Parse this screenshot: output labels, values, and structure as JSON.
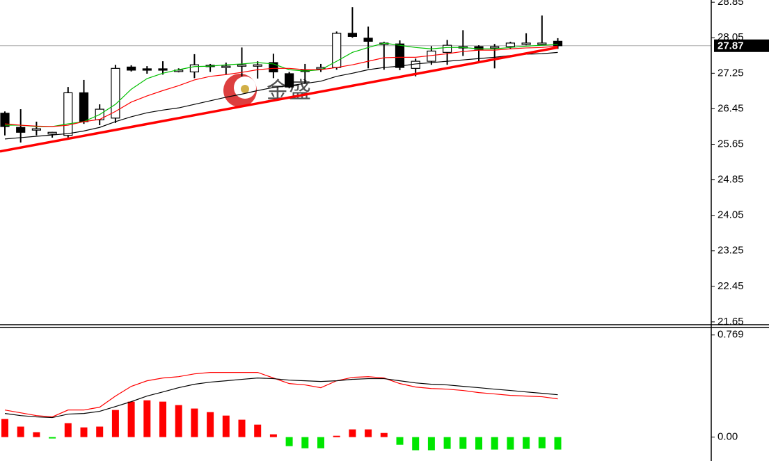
{
  "watermark": "金盛",
  "chart_data": [
    {
      "type": "candlestick",
      "open": [
        26.35,
        26.03,
        26.0,
        25.88,
        25.85,
        26.81,
        26.2,
        26.24,
        27.39,
        27.35,
        27.35,
        27.32,
        27.28,
        27.43,
        27.41,
        27.44,
        27.44,
        27.49,
        27.24,
        27.32,
        27.38,
        27.38,
        28.15,
        28.04,
        27.93,
        27.91,
        27.36,
        27.52,
        27.72,
        27.85,
        27.85,
        27.85,
        27.85,
        27.93,
        27.93,
        27.97
      ],
      "high": [
        26.39,
        26.44,
        26.16,
        25.93,
        26.94,
        27.1,
        26.55,
        27.44,
        27.43,
        27.41,
        27.52,
        27.36,
        27.68,
        27.46,
        27.49,
        27.83,
        27.52,
        27.69,
        27.28,
        27.46,
        27.46,
        28.19,
        28.74,
        28.3,
        27.96,
        27.99,
        27.58,
        27.86,
        28.0,
        28.22,
        27.88,
        27.91,
        27.96,
        28.15,
        28.55,
        28.04
      ],
      "low": [
        25.85,
        25.69,
        25.85,
        25.8,
        25.8,
        26.11,
        26.08,
        26.13,
        27.29,
        27.24,
        27.22,
        27.27,
        27.14,
        27.28,
        27.22,
        27.18,
        27.13,
        27.14,
        26.91,
        27.02,
        27.28,
        27.33,
        28.05,
        27.36,
        27.33,
        27.32,
        27.18,
        27.44,
        27.44,
        27.64,
        27.49,
        27.36,
        27.8,
        27.88,
        27.88,
        27.8
      ],
      "close": [
        26.05,
        25.92,
        26.0,
        25.92,
        26.81,
        26.16,
        26.44,
        27.36,
        27.32,
        27.33,
        27.34,
        27.32,
        27.44,
        27.43,
        27.41,
        27.44,
        27.44,
        27.28,
        26.94,
        27.31,
        27.38,
        28.15,
        28.08,
        27.97,
        27.93,
        27.38,
        27.52,
        27.75,
        27.88,
        27.85,
        27.79,
        27.85,
        27.93,
        27.93,
        27.93,
        27.87
      ],
      "series": [
        {
          "color": "#00c000",
          "values": [
            26.08,
            26.08,
            26.05,
            26.05,
            26.11,
            26.16,
            26.32,
            26.55,
            26.89,
            27.13,
            27.25,
            27.33,
            27.4,
            27.41,
            27.44,
            27.46,
            27.49,
            27.46,
            27.33,
            27.3,
            27.33,
            27.52,
            27.72,
            27.83,
            27.93,
            27.88,
            27.83,
            27.8,
            27.83,
            27.83,
            27.8,
            27.8,
            27.83,
            27.86,
            27.88,
            27.9
          ]
        },
        {
          "color": "#ff0000",
          "values": [
            26.11,
            26.08,
            26.06,
            26.05,
            26.08,
            26.16,
            26.21,
            26.39,
            26.6,
            26.74,
            26.86,
            26.97,
            27.1,
            27.18,
            27.22,
            27.27,
            27.33,
            27.36,
            27.36,
            27.33,
            27.33,
            27.38,
            27.44,
            27.52,
            27.6,
            27.61,
            27.61,
            27.65,
            27.69,
            27.74,
            27.77,
            27.77,
            27.8,
            27.82,
            27.83,
            27.86
          ]
        },
        {
          "color": "#000000",
          "values": [
            25.77,
            25.8,
            25.83,
            25.86,
            25.89,
            25.95,
            26.03,
            26.16,
            26.27,
            26.36,
            26.42,
            26.47,
            26.55,
            26.63,
            26.71,
            26.78,
            26.86,
            26.93,
            26.97,
            27.02,
            27.07,
            27.18,
            27.25,
            27.33,
            27.38,
            27.41,
            27.46,
            27.49,
            27.52,
            27.55,
            27.58,
            27.61,
            27.65,
            27.68,
            27.69,
            27.72
          ]
        }
      ],
      "trendline": {
        "color": "#ff0000",
        "values": [
          25.49,
          27.83
        ]
      },
      "last_price": 27.87,
      "ylim": [
        21.57,
        28.9
      ],
      "yticks": [
        28.85,
        28.05,
        27.25,
        26.45,
        25.65,
        24.85,
        24.05,
        23.25,
        22.45,
        21.65
      ]
    },
    {
      "type": "macd",
      "values": [
        0.136,
        0.079,
        0.037,
        -0.005,
        0.105,
        0.073,
        0.079,
        0.204,
        0.267,
        0.277,
        0.267,
        0.241,
        0.215,
        0.188,
        0.162,
        0.131,
        0.094,
        0.021,
        -0.068,
        -0.084,
        -0.084,
        0.01,
        0.058,
        0.058,
        0.031,
        -0.058,
        -0.099,
        -0.099,
        -0.089,
        -0.089,
        -0.094,
        -0.094,
        -0.094,
        -0.089,
        -0.084,
        -0.094
      ],
      "up_color": "#ff0000",
      "down_color": "#00e600",
      "series": [
        {
          "color": "#ff0000",
          "values": [
            0.204,
            0.183,
            0.162,
            0.152,
            0.204,
            0.204,
            0.225,
            0.309,
            0.382,
            0.424,
            0.445,
            0.455,
            0.476,
            0.487,
            0.487,
            0.487,
            0.487,
            0.445,
            0.403,
            0.393,
            0.372,
            0.424,
            0.45,
            0.455,
            0.445,
            0.403,
            0.377,
            0.366,
            0.361,
            0.351,
            0.335,
            0.325,
            0.314,
            0.309,
            0.304,
            0.288
          ]
        },
        {
          "color": "#000000",
          "values": [
            0.178,
            0.162,
            0.152,
            0.147,
            0.173,
            0.178,
            0.194,
            0.23,
            0.267,
            0.309,
            0.34,
            0.372,
            0.398,
            0.414,
            0.424,
            0.435,
            0.445,
            0.44,
            0.429,
            0.424,
            0.419,
            0.424,
            0.435,
            0.44,
            0.44,
            0.424,
            0.408,
            0.398,
            0.393,
            0.382,
            0.372,
            0.361,
            0.351,
            0.34,
            0.33,
            0.319
          ]
        }
      ],
      "ylim": [
        -0.18,
        0.82
      ],
      "yticks": [
        0.769,
        {
          "value": 0,
          "label": "0.00"
        }
      ]
    }
  ]
}
